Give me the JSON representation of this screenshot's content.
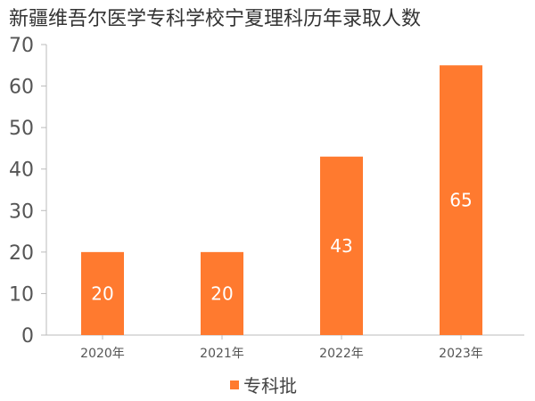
{
  "chart_data": {
    "type": "bar",
    "title": "新疆维吾尔医学专科学校宁夏理科历年录取人数",
    "categories": [
      "2020年",
      "2021年",
      "2022年",
      "2023年"
    ],
    "series": [
      {
        "name": "专科批",
        "values": [
          20,
          20,
          43,
          65
        ],
        "color": "#ff7a2f"
      }
    ],
    "ylim": [
      0,
      70
    ],
    "yticks": [
      0,
      10,
      20,
      30,
      40,
      50,
      60,
      70
    ],
    "grid": false,
    "legend": "bottom-center",
    "data_labels": true
  }
}
